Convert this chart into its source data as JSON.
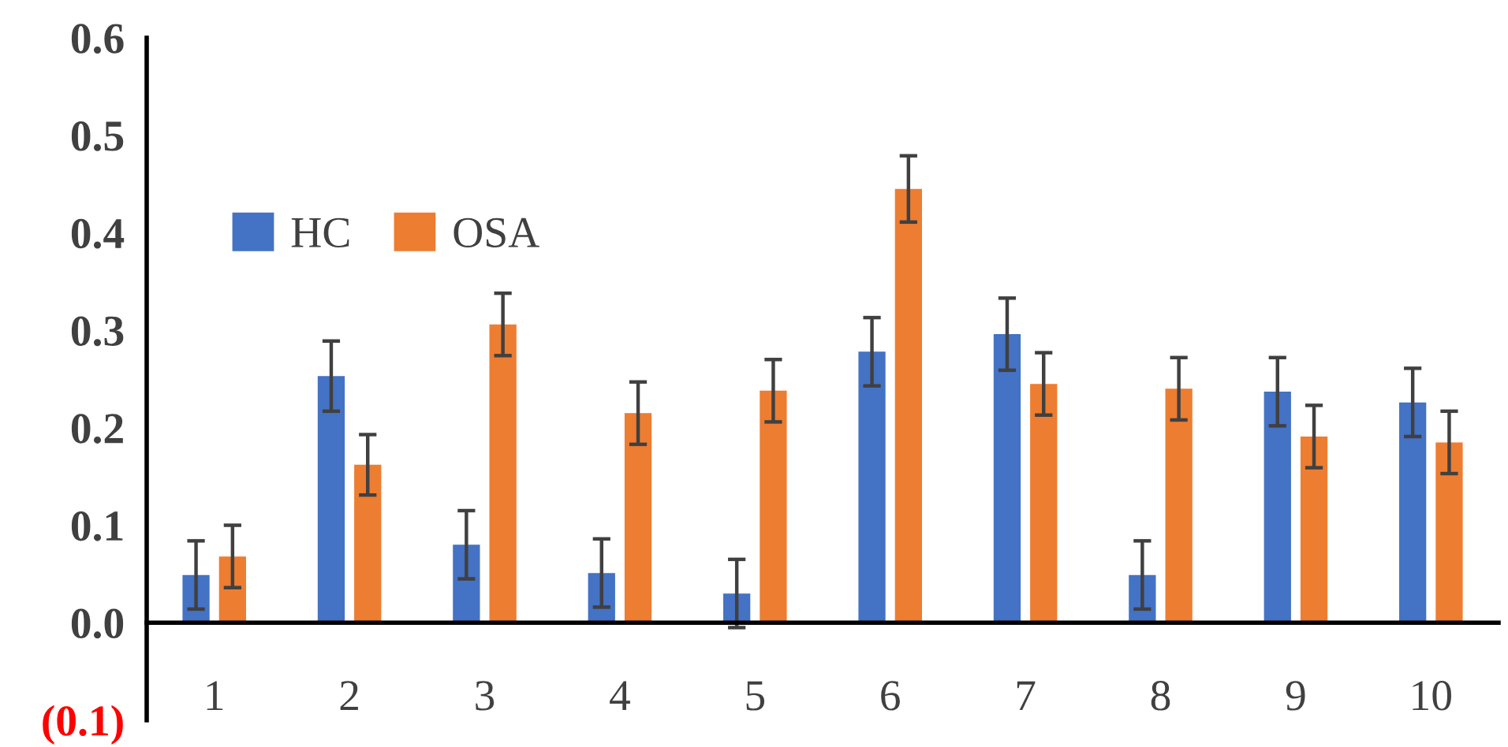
{
  "chart_data": {
    "type": "bar",
    "categories": [
      "1",
      "2",
      "3",
      "4",
      "5",
      "6",
      "7",
      "8",
      "9",
      "10"
    ],
    "series": [
      {
        "name": "HC",
        "color": "#4472c4",
        "values": [
          0.049,
          0.253,
          0.08,
          0.051,
          0.03,
          0.278,
          0.296,
          0.049,
          0.237,
          0.226
        ],
        "errors": [
          0.035,
          0.036,
          0.035,
          0.035,
          0.035,
          0.035,
          0.037,
          0.035,
          0.035,
          0.035
        ]
      },
      {
        "name": "OSA",
        "color": "#ed7d31",
        "values": [
          0.068,
          0.162,
          0.306,
          0.215,
          0.238,
          0.445,
          0.245,
          0.24,
          0.191,
          0.185
        ],
        "errors": [
          0.032,
          0.031,
          0.032,
          0.032,
          0.032,
          0.034,
          0.032,
          0.032,
          0.032,
          0.032
        ]
      }
    ],
    "ylim": [
      -0.1,
      0.6
    ],
    "yticks": [
      {
        "value": -0.1,
        "label": "(0.1)"
      },
      {
        "value": 0,
        "label": "0.0"
      },
      0.1,
      0.2,
      0.3,
      0.4,
      0.5,
      0.6
    ],
    "legend": "top left"
  }
}
